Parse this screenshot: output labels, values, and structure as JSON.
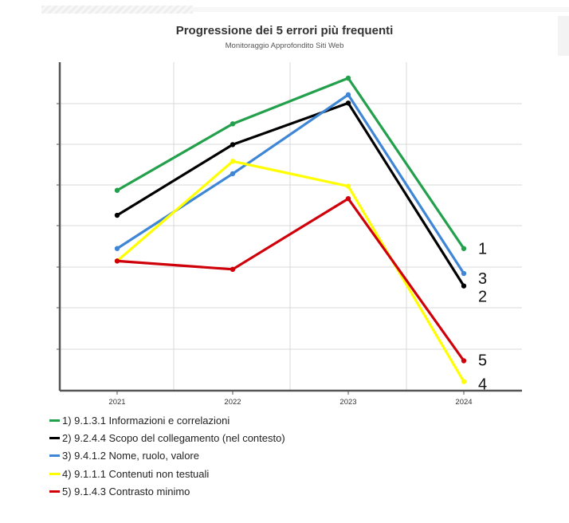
{
  "title": "Progressione dei 5 errori  più frequenti",
  "subtitle": "Monitoraggio Approfondito Siti Web",
  "chart_data": {
    "type": "line",
    "title": "Progressione dei 5 errori  più frequenti",
    "subtitle": "Monitoraggio Approfondito Siti Web",
    "categories": [
      "2021",
      "2022",
      "2023",
      "2024"
    ],
    "xlabel": "",
    "ylabel": "",
    "ylim": [
      0,
      7.5
    ],
    "grid": true,
    "legend_position": "bottom-left",
    "series": [
      {
        "name": "1) 9.1.3.1 Informazioni e correlazioni",
        "end_label": "1",
        "color": "#22a04b",
        "values": [
          4.8,
          6.4,
          7.5,
          3.4
        ]
      },
      {
        "name": "2) 9.2.4.4 Scopo del collegamento (nel contesto)",
        "end_label": "2",
        "color": "#000000",
        "values": [
          4.2,
          5.9,
          6.9,
          2.5
        ]
      },
      {
        "name": "3) 9.4.1.2 Nome, ruolo, valore",
        "end_label": "3",
        "color": "#3f86d6",
        "values": [
          3.4,
          5.2,
          7.1,
          2.8
        ]
      },
      {
        "name": "4) 9.1.1.1 Contenuti non testuali",
        "end_label": "4",
        "color": "#ffff00",
        "values": [
          3.1,
          5.5,
          4.9,
          0.2
        ]
      },
      {
        "name": "5) 9.1.4.3 Contrasto minimo",
        "end_label": "5",
        "color": "#d0000a",
        "values": [
          3.1,
          2.9,
          4.6,
          0.7
        ]
      }
    ]
  }
}
